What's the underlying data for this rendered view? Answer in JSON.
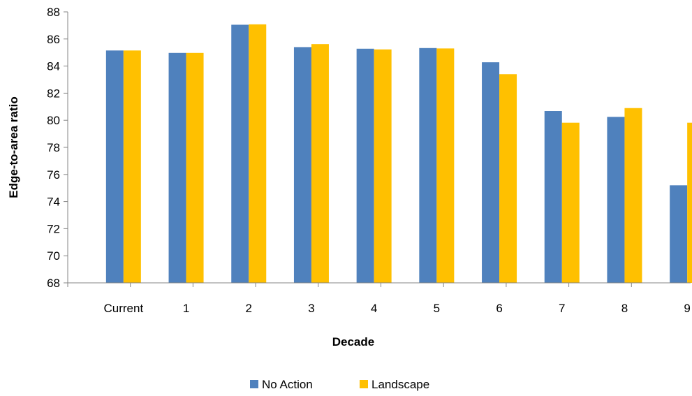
{
  "chart_data": {
    "type": "bar",
    "title": "",
    "xlabel": "Decade",
    "ylabel": "Edge-to-area ratio",
    "ylim": [
      68,
      88
    ],
    "ytick_step": 2,
    "yticks": [
      "68",
      "70",
      "72",
      "74",
      "76",
      "78",
      "80",
      "82",
      "84",
      "86",
      "88"
    ],
    "grid": false,
    "legend_position": "bottom",
    "categories": [
      "Current",
      "1",
      "2",
      "3",
      "4",
      "5",
      "6",
      "7",
      "8",
      "9"
    ],
    "series": [
      {
        "name": "No Action",
        "color": "#4F81BD",
        "values": [
          85.15,
          84.97,
          87.05,
          85.4,
          85.28,
          85.33,
          84.28,
          80.68,
          80.25,
          75.2
        ]
      },
      {
        "name": "Landscape",
        "color": "#FFC000",
        "values": [
          85.15,
          84.97,
          87.08,
          85.62,
          85.23,
          85.3,
          83.4,
          79.82,
          80.9,
          79.82
        ]
      }
    ]
  }
}
